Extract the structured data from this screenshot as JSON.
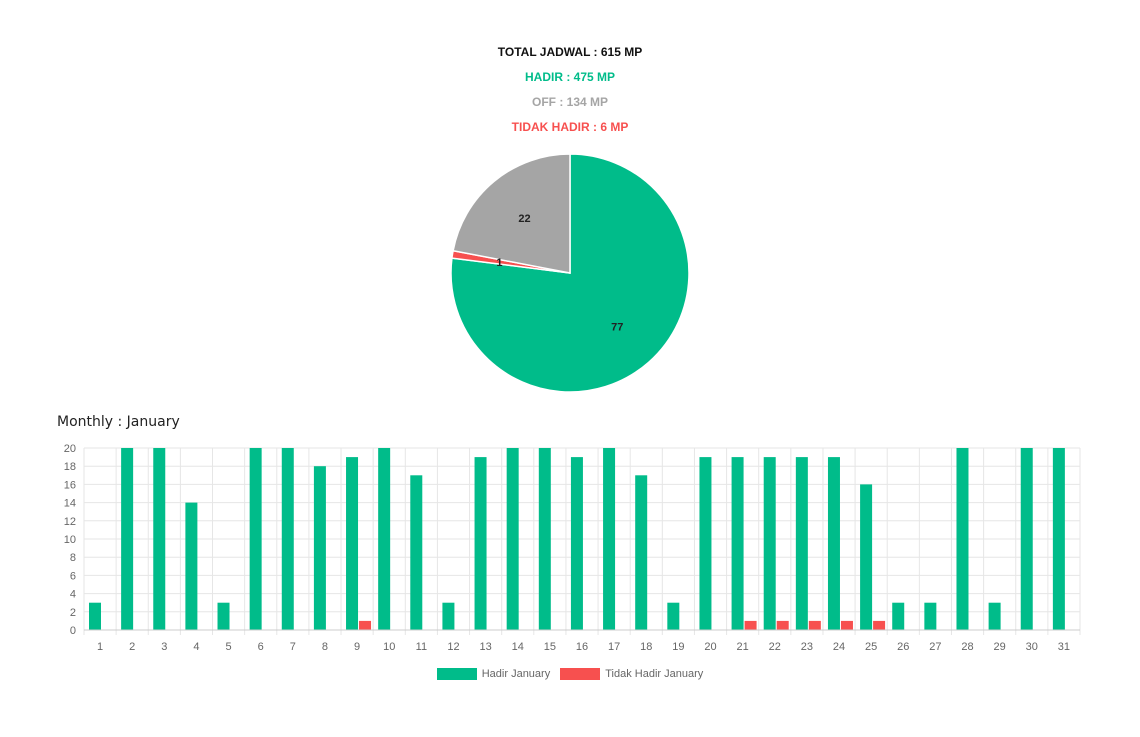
{
  "summary": {
    "total": "TOTAL JADWAL : 615 MP",
    "hadir": "HADIR : 475 MP",
    "off": "OFF : 134 MP",
    "tidak_hadir": "TIDAK HADIR : 6 MP"
  },
  "monthly_title": "Monthly : January",
  "colors": {
    "hadir": "#00bc8a",
    "off": "#a5a5a5",
    "tidak_hadir": "#f7504f"
  },
  "chart_data": [
    {
      "type": "pie",
      "labels": [
        "77",
        "1",
        "22"
      ],
      "slices": [
        {
          "value": 77,
          "color": "#00bc8a"
        },
        {
          "value": 1,
          "color": "#f7504f"
        },
        {
          "value": 22,
          "color": "#a5a5a5"
        }
      ]
    },
    {
      "type": "bar",
      "categories": [
        "1",
        "2",
        "3",
        "4",
        "5",
        "6",
        "7",
        "8",
        "9",
        "10",
        "11",
        "12",
        "13",
        "14",
        "15",
        "16",
        "17",
        "18",
        "19",
        "20",
        "21",
        "22",
        "23",
        "24",
        "25",
        "26",
        "27",
        "28",
        "29",
        "30",
        "31"
      ],
      "series": [
        {
          "name": "Hadir January",
          "color": "#00bc8a",
          "values": [
            3,
            20,
            20,
            14,
            3,
            20,
            20,
            18,
            19,
            20,
            17,
            3,
            19,
            20,
            20,
            19,
            20,
            17,
            3,
            19,
            19,
            19,
            19,
            19,
            16,
            3,
            3,
            20,
            3,
            20,
            20
          ]
        },
        {
          "name": "Tidak Hadir January",
          "color": "#f7504f",
          "values": [
            0,
            0,
            0,
            0,
            0,
            0,
            0,
            0,
            1,
            0,
            0,
            0,
            0,
            0,
            0,
            0,
            0,
            0,
            0,
            0,
            1,
            1,
            1,
            1,
            1,
            0,
            0,
            0,
            0,
            0,
            0
          ]
        }
      ],
      "ylim": [
        0,
        20
      ],
      "yticks": [
        "0",
        "2",
        "4",
        "6",
        "8",
        "10",
        "12",
        "14",
        "16",
        "18",
        "20"
      ],
      "grid": true,
      "legend": "bottom"
    }
  ]
}
